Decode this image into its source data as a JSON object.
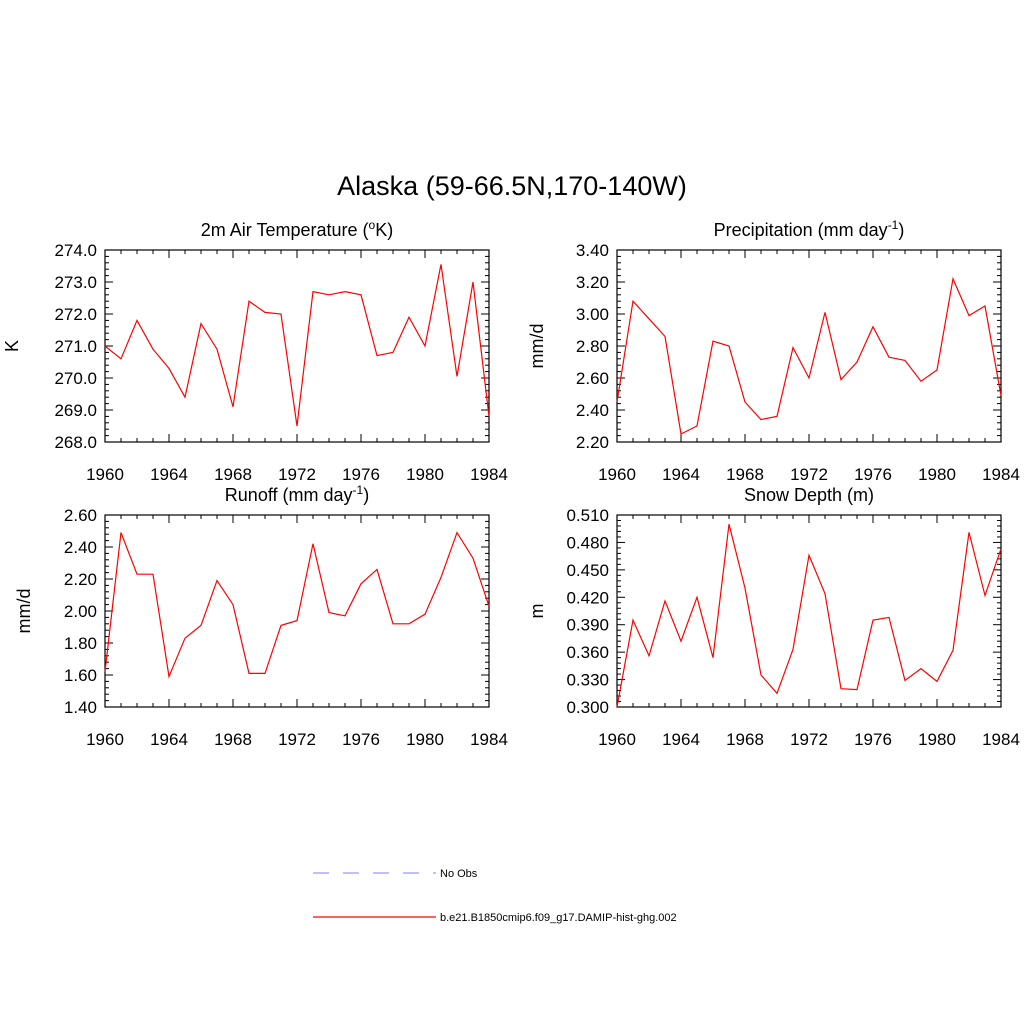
{
  "title": "Alaska (59-66.5N,170-140W)",
  "chart_data": [
    {
      "type": "line",
      "title_main": "2m Air Temperature (",
      "title_sup": "o",
      "title_end": "K)",
      "ylabel": "K",
      "xlim": [
        1960,
        1984
      ],
      "ylim": [
        268.0,
        274.0
      ],
      "xticks": [
        "1960",
        "1964",
        "1968",
        "1972",
        "1976",
        "1980",
        "1984"
      ],
      "yticks": [
        "268.0",
        "269.0",
        "270.0",
        "271.0",
        "272.0",
        "273.0",
        "274.0"
      ],
      "x": [
        1960,
        1961,
        1962,
        1963,
        1964,
        1965,
        1966,
        1967,
        1968,
        1969,
        1970,
        1971,
        1972,
        1973,
        1974,
        1975,
        1976,
        1977,
        1978,
        1979,
        1980,
        1981,
        1982,
        1983,
        1984
      ],
      "series": [
        {
          "values": [
            271.0,
            270.6,
            271.8,
            270.9,
            270.3,
            269.4,
            271.7,
            270.9,
            269.1,
            272.4,
            272.05,
            272.0,
            268.5,
            272.7,
            272.6,
            272.7,
            272.6,
            270.7,
            270.8,
            271.9,
            271.0,
            273.55,
            270.05,
            273.0,
            268.8
          ],
          "color": "#ff0000"
        }
      ]
    },
    {
      "type": "line",
      "title_main": "Precipitation (mm day",
      "title_sup": "-1",
      "title_end": ")",
      "ylabel": "mm/d",
      "xlim": [
        1960,
        1984
      ],
      "ylim": [
        2.2,
        3.4
      ],
      "xticks": [
        "1960",
        "1964",
        "1968",
        "1972",
        "1976",
        "1980",
        "1984"
      ],
      "yticks": [
        "2.20",
        "2.40",
        "2.60",
        "2.80",
        "3.00",
        "3.20",
        "3.40"
      ],
      "x": [
        1960,
        1961,
        1962,
        1963,
        1964,
        1965,
        1966,
        1967,
        1968,
        1969,
        1970,
        1971,
        1972,
        1973,
        1974,
        1975,
        1976,
        1977,
        1978,
        1979,
        1980,
        1981,
        1982,
        1983,
        1984
      ],
      "series": [
        {
          "values": [
            2.45,
            3.08,
            2.97,
            2.86,
            2.25,
            2.3,
            2.83,
            2.8,
            2.45,
            2.34,
            2.36,
            2.79,
            2.6,
            3.01,
            2.59,
            2.7,
            2.92,
            2.73,
            2.71,
            2.58,
            2.65,
            3.22,
            2.99,
            3.05,
            2.49
          ],
          "color": "#ff0000"
        }
      ]
    },
    {
      "type": "line",
      "title_main": "Runoff (mm day",
      "title_sup": "-1",
      "title_end": ")",
      "ylabel": "mm/d",
      "xlim": [
        1960,
        1984
      ],
      "ylim": [
        1.4,
        2.6
      ],
      "xticks": [
        "1960",
        "1964",
        "1968",
        "1972",
        "1976",
        "1980",
        "1984"
      ],
      "yticks": [
        "1.40",
        "1.60",
        "1.80",
        "2.00",
        "2.20",
        "2.40",
        "2.60"
      ],
      "x": [
        1960,
        1961,
        1962,
        1963,
        1964,
        1965,
        1966,
        1967,
        1968,
        1969,
        1970,
        1971,
        1972,
        1973,
        1974,
        1975,
        1976,
        1977,
        1978,
        1979,
        1980,
        1981,
        1982,
        1983,
        1984
      ],
      "series": [
        {
          "values": [
            1.62,
            2.49,
            2.23,
            2.23,
            1.59,
            1.83,
            1.91,
            2.19,
            2.04,
            1.61,
            1.61,
            1.91,
            1.94,
            2.42,
            1.99,
            1.97,
            2.17,
            2.26,
            1.92,
            1.92,
            1.98,
            2.21,
            2.49,
            2.33,
            2.03
          ],
          "color": "#ff0000"
        }
      ]
    },
    {
      "type": "line",
      "title_main": "Snow Depth (m)",
      "title_sup": "",
      "title_end": "",
      "ylabel": "m",
      "xlim": [
        1960,
        1984
      ],
      "ylim": [
        0.3,
        0.51
      ],
      "xticks": [
        "1960",
        "1964",
        "1968",
        "1972",
        "1976",
        "1980",
        "1984"
      ],
      "yticks": [
        "0.300",
        "0.330",
        "0.360",
        "0.390",
        "0.420",
        "0.450",
        "0.480",
        "0.510"
      ],
      "x": [
        1960,
        1961,
        1962,
        1963,
        1964,
        1965,
        1966,
        1967,
        1968,
        1969,
        1970,
        1971,
        1972,
        1973,
        1974,
        1975,
        1976,
        1977,
        1978,
        1979,
        1980,
        1981,
        1982,
        1983,
        1984
      ],
      "series": [
        {
          "values": [
            0.3,
            0.395,
            0.356,
            0.416,
            0.372,
            0.42,
            0.354,
            0.5,
            0.43,
            0.335,
            0.315,
            0.363,
            0.466,
            0.424,
            0.32,
            0.319,
            0.395,
            0.398,
            0.329,
            0.342,
            0.328,
            0.362,
            0.491,
            0.422,
            0.473
          ],
          "color": "#ff0000"
        }
      ]
    }
  ],
  "legend": {
    "items": [
      {
        "label": "No Obs",
        "color": "#9999ff",
        "dash": "16,14"
      },
      {
        "label": "b.e21.B1850cmip6.f09_g17.DAMIP-hist-ghg.002",
        "color": "#ff0000",
        "dash": ""
      }
    ]
  }
}
